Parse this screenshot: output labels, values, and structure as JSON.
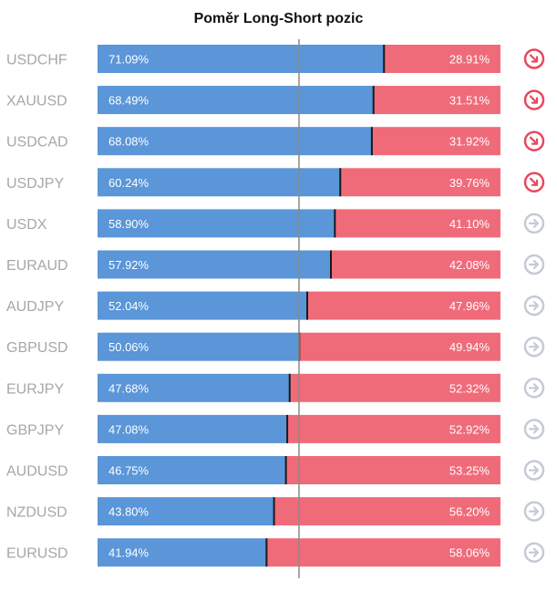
{
  "chart_data": {
    "type": "bar",
    "stacked": true,
    "orientation": "horizontal",
    "title": "Poměr Long-Short pozic",
    "categories": [
      "USDCHF",
      "XAUUSD",
      "USDCAD",
      "USDJPY",
      "USDX",
      "EURAUD",
      "AUDJPY",
      "GBPUSD",
      "EURJPY",
      "GBPJPY",
      "AUDUSD",
      "NZDUSD",
      "EURUSD"
    ],
    "series": [
      {
        "color": "#5a96d8",
        "labels": [
          "71.09%",
          "68.49%",
          "68.08%",
          "60.24%",
          "58.90%",
          "57.92%",
          "52.04%",
          "50.06%",
          "47.68%",
          "47.08%",
          "46.75%",
          "43.80%",
          "41.94%"
        ],
        "values": [
          71.09,
          68.49,
          68.08,
          60.24,
          58.9,
          57.92,
          52.04,
          50.06,
          47.68,
          47.08,
          46.75,
          43.8,
          41.94
        ]
      },
      {
        "color": "#f06b7a",
        "labels": [
          "28.91%",
          "31.51%",
          "31.92%",
          "39.76%",
          "41.10%",
          "42.08%",
          "47.96%",
          "49.94%",
          "52.32%",
          "52.92%",
          "53.25%",
          "56.20%",
          "58.06%"
        ],
        "values": [
          28.91,
          31.51,
          31.92,
          39.76,
          41.1,
          42.08,
          47.96,
          49.94,
          52.32,
          52.92,
          53.25,
          56.2,
          58.06
        ]
      }
    ],
    "xlim": [
      0,
      100
    ],
    "reference_line": 50,
    "trend_icons": [
      "down-right",
      "down-right",
      "down-right",
      "down-right",
      "right",
      "right",
      "right",
      "right",
      "right",
      "right",
      "right",
      "right",
      "right"
    ],
    "icon_colors": {
      "down-right": "#e8485f",
      "right": "#c4cbd6"
    }
  }
}
